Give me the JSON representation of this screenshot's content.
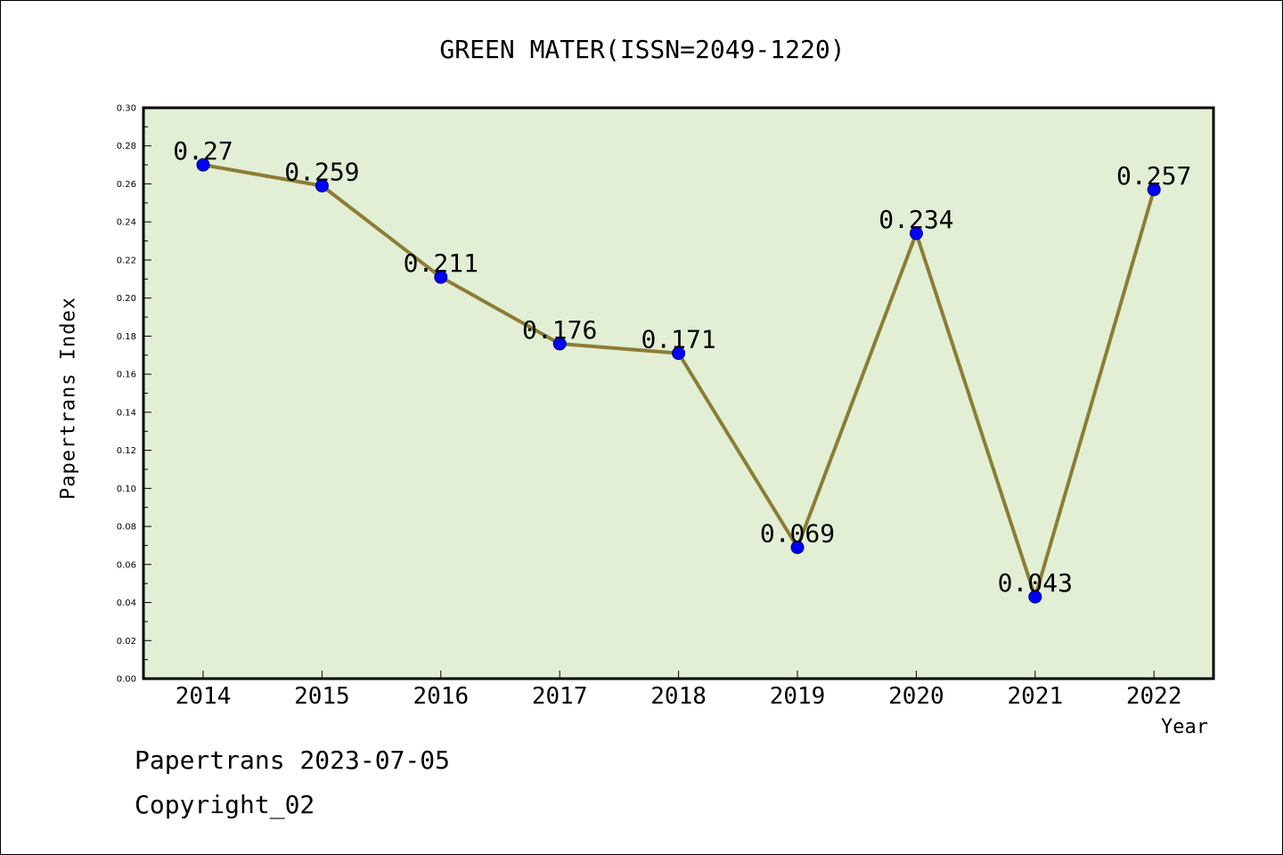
{
  "colors": {
    "plot_background": "#e2efd5",
    "line": "#8b7d35",
    "marker": "#0000ff",
    "axis": "#000000"
  },
  "chart_data": {
    "type": "line",
    "title": "GREEN MATER(ISSN=2049-1220)",
    "xlabel": "Year",
    "ylabel": "Papertrans Index",
    "categories": [
      "2014",
      "2015",
      "2016",
      "2017",
      "2018",
      "2019",
      "2020",
      "2021",
      "2022"
    ],
    "values": [
      0.27,
      0.259,
      0.211,
      0.176,
      0.171,
      0.069,
      0.234,
      0.043,
      0.257
    ],
    "data_labels": [
      "0.27",
      "0.259",
      "0.211",
      "0.176",
      "0.171",
      "0.069",
      "0.234",
      "0.043",
      "0.257"
    ],
    "ylim": [
      0,
      0.3
    ],
    "yticks": [
      "0.00",
      "0.02",
      "0.04",
      "0.06",
      "0.08",
      "0.10",
      "0.12",
      "0.14",
      "0.16",
      "0.18",
      "0.20",
      "0.22",
      "0.24",
      "0.26",
      "0.28",
      "0.30"
    ],
    "grid": false
  },
  "footer": {
    "line1": "Papertrans 2023-07-05",
    "line2": "Copyright_02"
  }
}
